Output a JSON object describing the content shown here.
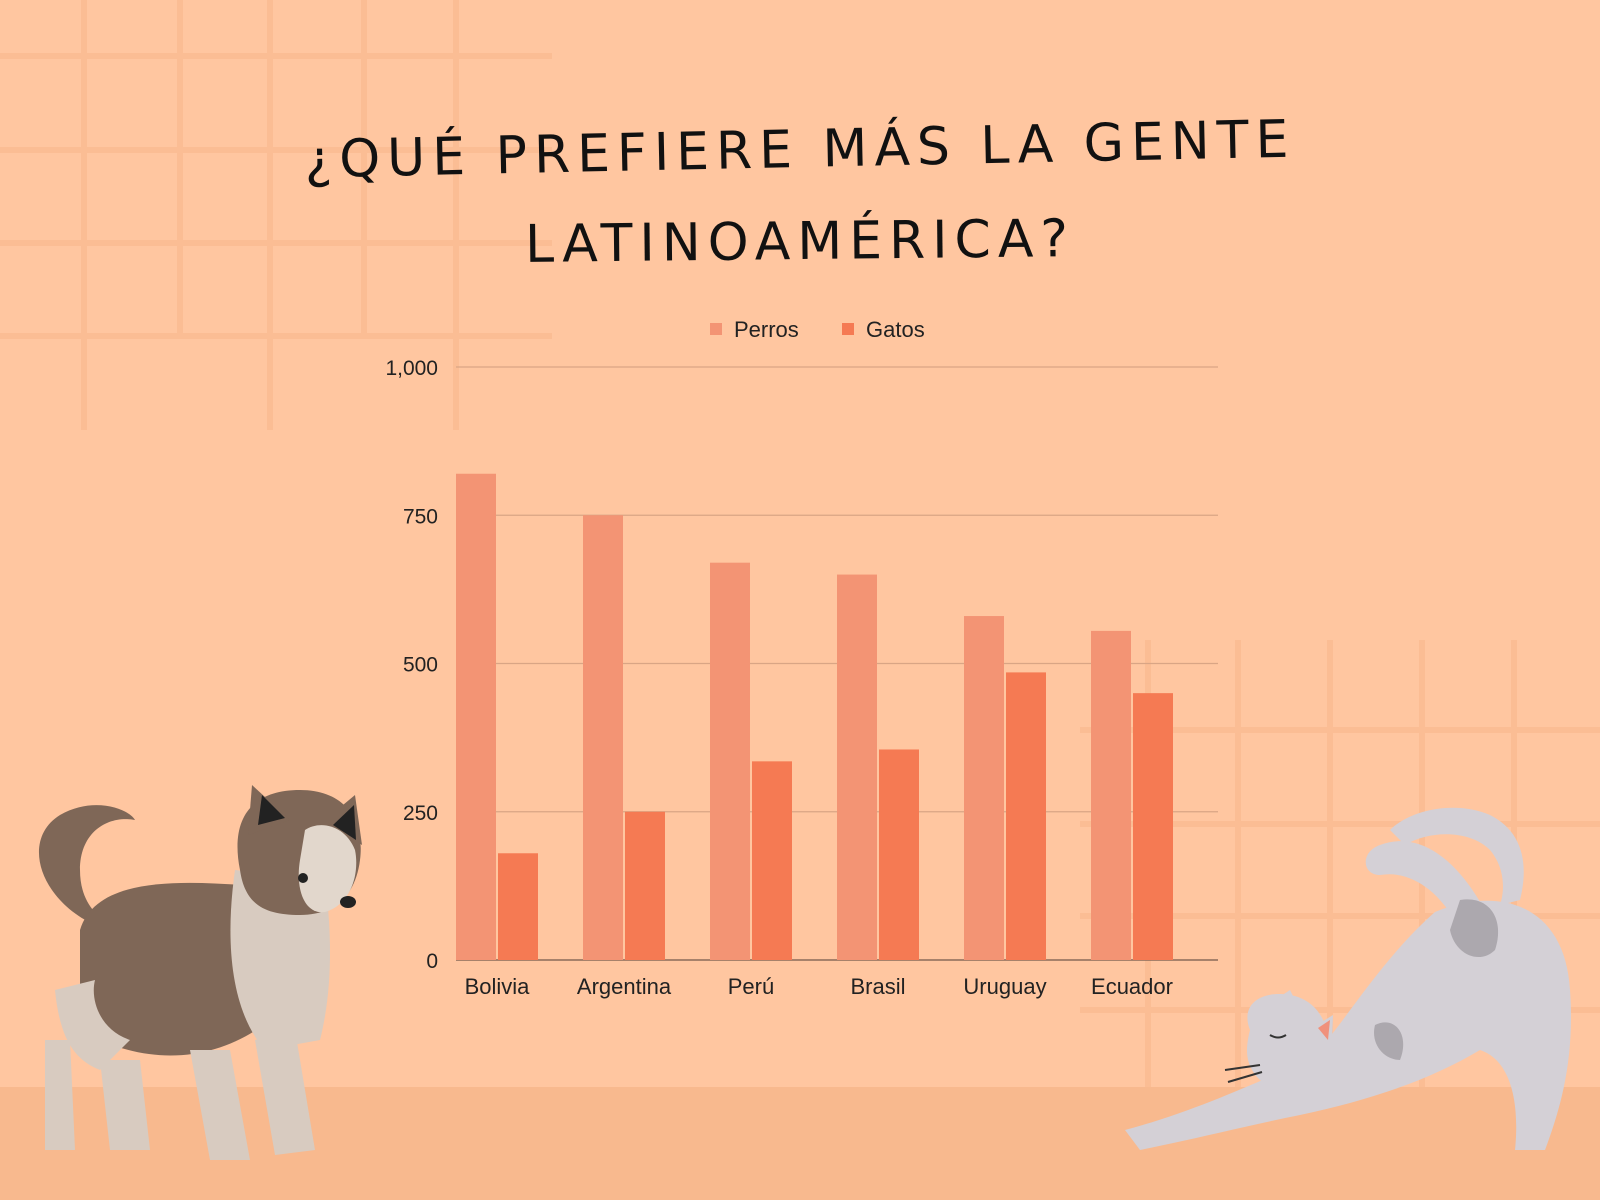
{
  "title_line1": "¿QUÉ PREFIERE MÁS LA GENTE",
  "title_line2": "LATINOAMÉRICA?",
  "colors": {
    "background": "#ffc6a0",
    "floor": "#f8b98e",
    "grid_lines": "#fbbd94",
    "perros": "#f39474",
    "gatos": "#f57a53",
    "axis_text": "#222222",
    "gridline": "#d9a585"
  },
  "illustrations": [
    "dog-illustration",
    "cat-illustration"
  ],
  "chart_data": {
    "type": "bar",
    "categories": [
      "Bolivia",
      "Argentina",
      "Perú",
      "Brasil",
      "Uruguay",
      "Ecuador"
    ],
    "series": [
      {
        "name": "Perros",
        "values": [
          820,
          750,
          670,
          650,
          580,
          555
        ]
      },
      {
        "name": "Gatos",
        "values": [
          180,
          250,
          335,
          355,
          485,
          450
        ]
      }
    ],
    "ylim": [
      0,
      1000
    ],
    "yticks": [
      0,
      250,
      500,
      750,
      1000
    ],
    "ytick_labels": [
      "0",
      "250",
      "500",
      "750",
      "1,000"
    ],
    "legend": "top-center",
    "grid": true
  }
}
